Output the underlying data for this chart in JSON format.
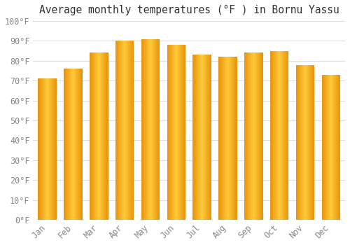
{
  "title": "Average monthly temperatures (°F ) in Bornu Yassu",
  "months": [
    "Jan",
    "Feb",
    "Mar",
    "Apr",
    "May",
    "Jun",
    "Jul",
    "Aug",
    "Sep",
    "Oct",
    "Nov",
    "Dec"
  ],
  "values": [
    71,
    76,
    84,
    90,
    91,
    88,
    83,
    82,
    84,
    85,
    78,
    73
  ],
  "bar_color_edge": "#E8920A",
  "bar_color_center": "#FFCA3A",
  "ylim": [
    0,
    100
  ],
  "ytick_step": 10,
  "background_color": "#FFFFFF",
  "grid_color": "#DDDDDD",
  "title_fontsize": 10.5,
  "tick_fontsize": 8.5
}
